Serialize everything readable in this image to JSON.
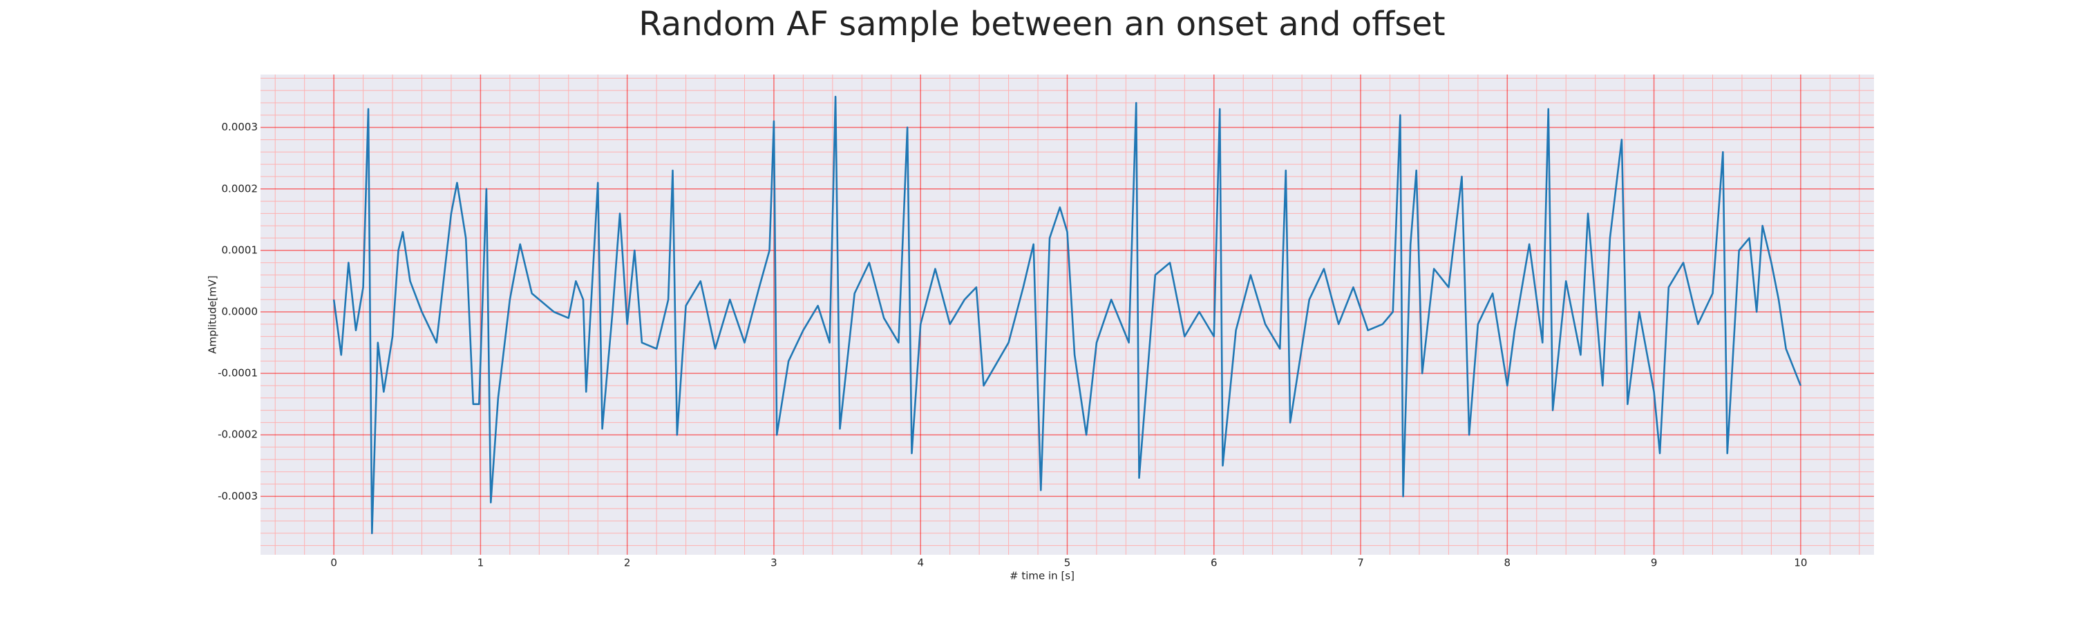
{
  "chart_data": {
    "type": "line",
    "title": "Random AF sample between an onset and offset",
    "xlabel": "# time in [s]",
    "ylabel": "Amplitude[mV]",
    "color": "#1f77b4",
    "grid": true,
    "minor_grid": true,
    "grid_color": "#ff0000",
    "minor_grid_color": "#ffb0b0",
    "xlim": [
      -0.5,
      10.5
    ],
    "ylim": [
      -0.000395,
      0.000386
    ],
    "xticks": [
      0,
      1,
      2,
      3,
      4,
      5,
      6,
      7,
      8,
      9,
      10
    ],
    "yticks": [
      {
        "value": -0.0003,
        "label": "-0.0003"
      },
      {
        "value": -0.0002,
        "label": "-0.0002"
      },
      {
        "value": -0.0001,
        "label": "-0.0001"
      },
      {
        "value": 0,
        "label": "0.0000"
      },
      {
        "value": 0.0001,
        "label": "0.0001"
      },
      {
        "value": 0.0002,
        "label": "0.0002"
      },
      {
        "value": 0.0003,
        "label": "0.0003"
      }
    ],
    "xminorticks": [
      -0.4,
      -0.2,
      0.2,
      0.4,
      0.6,
      0.8,
      1.2,
      1.4,
      1.6,
      1.8,
      2.2,
      2.4,
      2.6,
      2.8,
      3.2,
      3.4,
      3.6,
      3.8,
      4.2,
      4.4,
      4.6,
      4.8,
      5.2,
      5.4,
      5.6,
      5.8,
      6.2,
      6.4,
      6.6,
      6.8,
      7.2,
      7.4,
      7.6,
      7.8,
      8.2,
      8.4,
      8.6,
      8.8,
      9.2,
      9.4,
      9.6,
      9.8,
      10.2,
      10.4
    ],
    "yminorticks": [
      -0.00038,
      -0.00036,
      -0.00034,
      -0.00032,
      -0.00028,
      -0.00026,
      -0.00024,
      -0.00022,
      -0.00018,
      -0.00016,
      -0.00014,
      -0.00012,
      -8e-05,
      -6e-05,
      -4e-05,
      -2e-05,
      2e-05,
      4e-05,
      6e-05,
      8e-05,
      0.00012,
      0.00014,
      0.00016,
      0.00018,
      0.00022,
      0.00024,
      0.00026,
      0.00028,
      0.00032,
      0.00034,
      0.00036,
      0.00038
    ],
    "x": [
      0,
      0.05,
      0.1,
      0.15,
      0.2,
      0.235,
      0.26,
      0.3,
      0.34,
      0.4,
      0.44,
      0.47,
      0.52,
      0.6,
      0.7,
      0.8,
      0.84,
      0.9,
      0.95,
      0.99,
      1.04,
      1.07,
      1.12,
      1.2,
      1.27,
      1.35,
      1.5,
      1.6,
      1.65,
      1.7,
      1.72,
      1.8,
      1.83,
      1.9,
      1.95,
      2.0,
      2.05,
      2.1,
      2.2,
      2.28,
      2.31,
      2.34,
      2.4,
      2.5,
      2.6,
      2.7,
      2.8,
      2.9,
      2.97,
      3.0,
      3.02,
      3.1,
      3.2,
      3.3,
      3.38,
      3.42,
      3.45,
      3.55,
      3.65,
      3.75,
      3.85,
      3.91,
      3.94,
      4.0,
      4.1,
      4.2,
      4.3,
      4.38,
      4.43,
      4.6,
      4.7,
      4.77,
      4.82,
      4.88,
      4.95,
      5.0,
      5.05,
      5.13,
      5.2,
      5.3,
      5.42,
      5.47,
      5.49,
      5.6,
      5.7,
      5.8,
      5.9,
      6.0,
      6.04,
      6.06,
      6.15,
      6.25,
      6.35,
      6.45,
      6.49,
      6.52,
      6.65,
      6.75,
      6.85,
      6.95,
      7.05,
      7.15,
      7.22,
      7.27,
      7.29,
      7.34,
      7.38,
      7.42,
      7.5,
      7.6,
      7.69,
      7.74,
      7.8,
      7.9,
      8.0,
      8.05,
      8.15,
      8.24,
      8.28,
      8.31,
      8.4,
      8.5,
      8.55,
      8.65,
      8.7,
      8.78,
      8.82,
      8.9,
      9.0,
      9.04,
      9.1,
      9.2,
      9.3,
      9.4,
      9.47,
      9.5,
      9.58,
      9.65,
      9.7,
      9.74,
      9.8,
      9.85,
      9.9,
      9.95,
      10.0
    ],
    "values": [
      2e-05,
      -7e-05,
      8e-05,
      -3e-05,
      4e-05,
      0.00033,
      -0.00036,
      -5e-05,
      -0.00013,
      -4e-05,
      0.0001,
      0.00013,
      5e-05,
      0,
      -5e-05,
      0.00016,
      0.00021,
      0.00012,
      -0.00015,
      -0.00015,
      0.0002,
      -0.00031,
      -0.00014,
      2e-05,
      0.00011,
      3e-05,
      0,
      -1e-05,
      5e-05,
      2e-05,
      -0.00013,
      0.00021,
      -0.00019,
      0,
      0.00016,
      -2e-05,
      0.0001,
      -5e-05,
      -6e-05,
      2e-05,
      0.00023,
      -0.0002,
      1e-05,
      5e-05,
      -6e-05,
      2e-05,
      -5e-05,
      4e-05,
      0.0001,
      0.00031,
      -0.0002,
      -8e-05,
      -3e-05,
      1e-05,
      -5e-05,
      0.00035,
      -0.00019,
      3e-05,
      8e-05,
      -1e-05,
      -5e-05,
      0.0003,
      -0.00023,
      -2e-05,
      7e-05,
      -2e-05,
      2e-05,
      4e-05,
      -0.00012,
      -5e-05,
      4e-05,
      0.00011,
      -0.00029,
      0.00012,
      0.00017,
      0.00013,
      -7e-05,
      -0.0002,
      -5e-05,
      2e-05,
      -5e-05,
      0.00034,
      -0.00027,
      6e-05,
      8e-05,
      -4e-05,
      0,
      -4e-05,
      0.00033,
      -0.00025,
      -3e-05,
      6e-05,
      -2e-05,
      -6e-05,
      0.00023,
      -0.00018,
      2e-05,
      7e-05,
      -2e-05,
      4e-05,
      -3e-05,
      -2e-05,
      0,
      0.00032,
      -0.0003,
      0.00011,
      0.00023,
      -0.0001,
      7e-05,
      4e-05,
      0.00022,
      -0.0002,
      -2e-05,
      3e-05,
      -0.00012,
      -3e-05,
      0.00011,
      -5e-05,
      0.00033,
      -0.00016,
      5e-05,
      -7e-05,
      0.00016,
      -0.00012,
      0.00012,
      0.00028,
      -0.00015,
      0,
      -0.00013,
      -0.00023,
      4e-05,
      8e-05,
      -2e-05,
      3e-05,
      0.00026,
      -0.00023,
      0.0001,
      0.00012,
      0,
      0.00014,
      8e-05,
      2e-05,
      -6e-05,
      -9e-05,
      -0.00012
    ]
  }
}
